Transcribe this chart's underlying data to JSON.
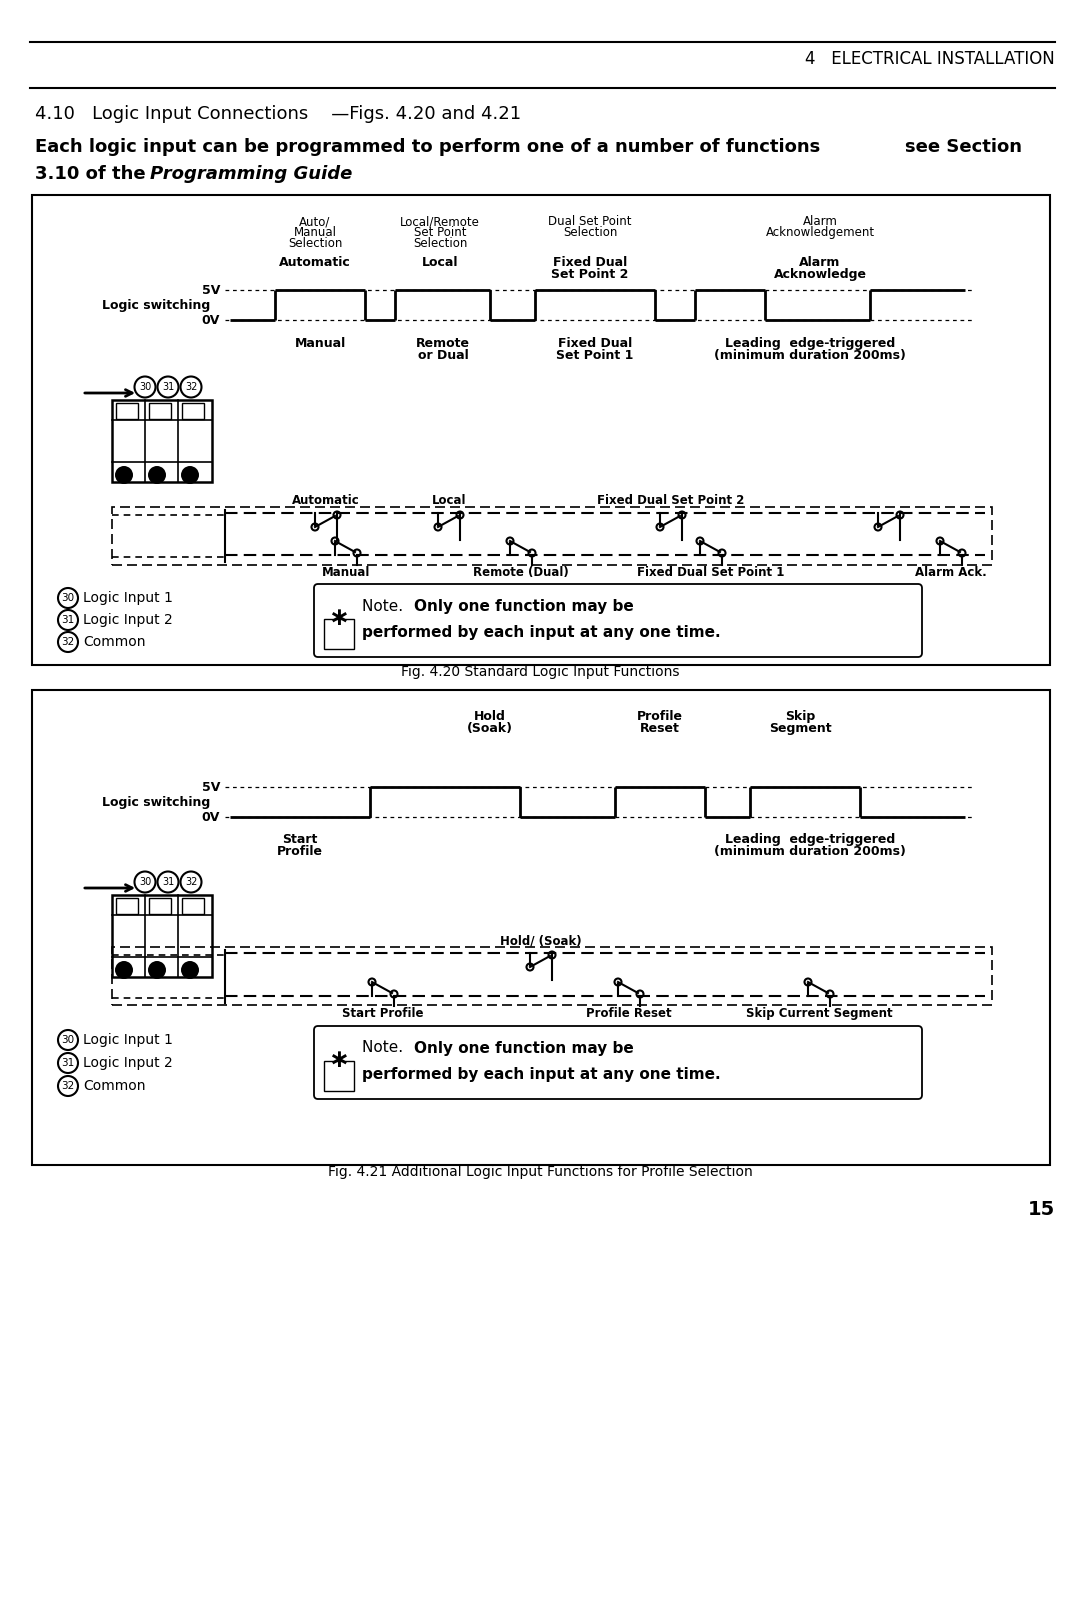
{
  "page_header": "4   ELECTRICAL INSTALLATION",
  "section_title": "4.10   Logic Input Connections    —Figs. 4.20 and 4.21",
  "section_body1": "Each logic input can be programmed to perform one of a number of functions. See Section",
  "section_body2": "3.10 of the",
  "section_body2_italic": "Programming Guide",
  "fig1_caption": "Fig. 4.20 Standard Logic Input Functions",
  "fig2_caption": "Fig. 4.21 Additional Logic Input Functions for Profile Selection",
  "page_number": "15",
  "bg_color": "#ffffff"
}
